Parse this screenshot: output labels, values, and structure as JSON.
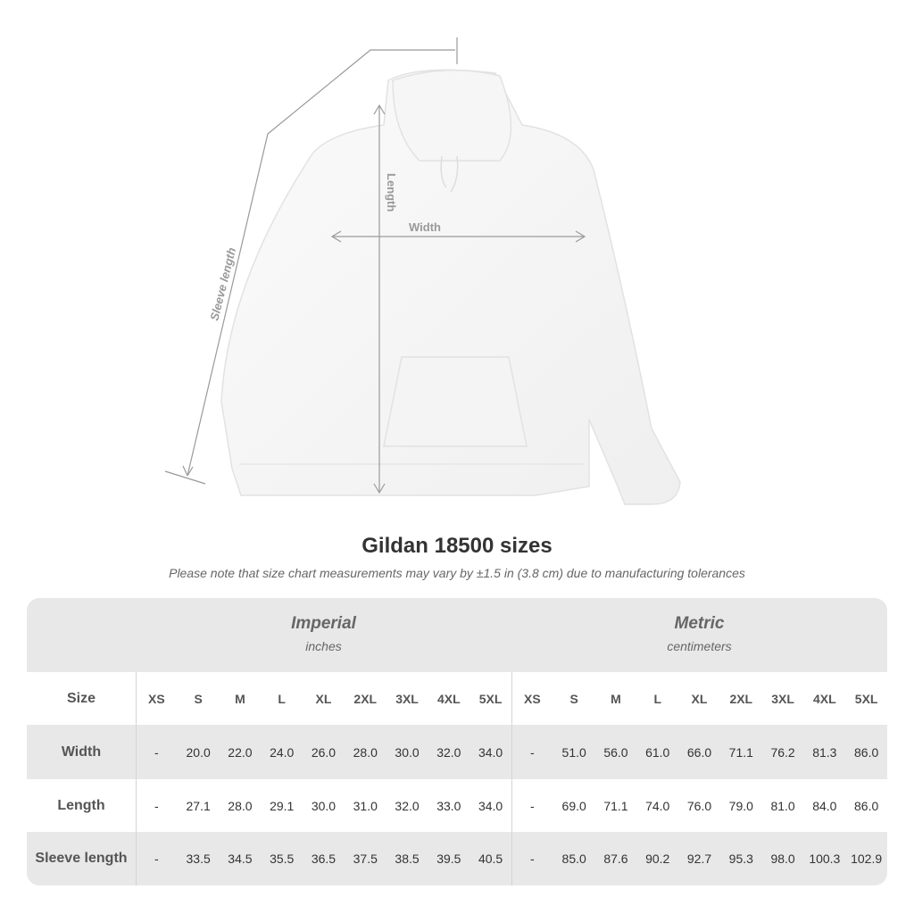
{
  "diagram": {
    "sleeve_label": "Sleeve length",
    "length_label": "Length",
    "width_label": "Width"
  },
  "title": "Gildan 18500 sizes",
  "note": "Please note that size chart measurements may vary by ±1.5 in (3.8 cm) due to manufacturing tolerances",
  "table": {
    "imperial": {
      "title": "Imperial",
      "subtitle": "inches"
    },
    "metric": {
      "title": "Metric",
      "subtitle": "centimeters"
    },
    "rows": [
      {
        "label": "Size",
        "imperial": [
          "XS",
          "S",
          "M",
          "L",
          "XL",
          "2XL",
          "3XL",
          "4XL",
          "5XL"
        ],
        "metric": [
          "XS",
          "S",
          "M",
          "L",
          "XL",
          "2XL",
          "3XL",
          "4XL",
          "5XL"
        ]
      },
      {
        "label": "Width",
        "imperial": [
          "-",
          "20.0",
          "22.0",
          "24.0",
          "26.0",
          "28.0",
          "30.0",
          "32.0",
          "34.0"
        ],
        "metric": [
          "-",
          "51.0",
          "56.0",
          "61.0",
          "66.0",
          "71.1",
          "76.2",
          "81.3",
          "86.0"
        ]
      },
      {
        "label": "Length",
        "imperial": [
          "-",
          "27.1",
          "28.0",
          "29.1",
          "30.0",
          "31.0",
          "32.0",
          "33.0",
          "34.0"
        ],
        "metric": [
          "-",
          "69.0",
          "71.1",
          "74.0",
          "76.0",
          "79.0",
          "81.0",
          "84.0",
          "86.0"
        ]
      },
      {
        "label": "Sleeve length",
        "imperial": [
          "-",
          "33.5",
          "34.5",
          "35.5",
          "36.5",
          "37.5",
          "38.5",
          "39.5",
          "40.5"
        ],
        "metric": [
          "-",
          "85.0",
          "87.6",
          "90.2",
          "92.7",
          "95.3",
          "98.0",
          "100.3",
          "102.9"
        ]
      }
    ]
  }
}
